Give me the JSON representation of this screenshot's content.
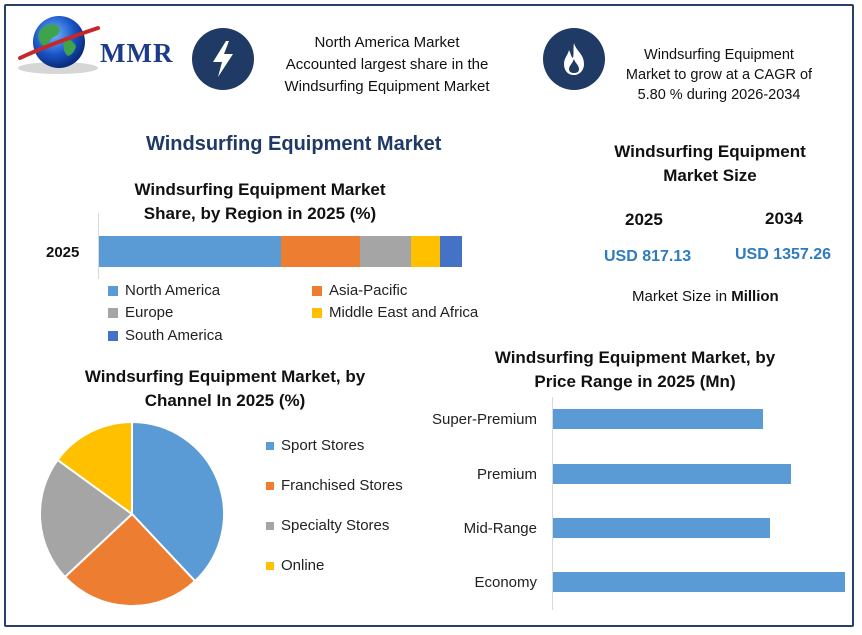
{
  "header": {
    "logo_text": "MMR",
    "badge1_text_lines": [
      "North America Market",
      "Accounted largest share in the",
      "Windsurfing Equipment Market"
    ],
    "badge2_text_lines": [
      "Windsurfing Equipment",
      "Market to grow at a CAGR of",
      "5.80 % during 2026-2034"
    ],
    "badge1_icon": "lightning-bolt-icon",
    "badge2_icon": "flame-icon"
  },
  "main_title": "Windsurfing Equipment Market",
  "market_size": {
    "title_lines": [
      "Windsurfing Equipment",
      "Market Size"
    ],
    "year_a": "2025",
    "year_b": "2034",
    "value_a": "USD 817.13",
    "value_b": "USD 1357.26",
    "note_prefix": "Market Size in ",
    "note_bold": "Million"
  },
  "colors": {
    "blue": "#5b9bd5",
    "orange": "#ed7d31",
    "gray": "#a5a5a5",
    "gold": "#ffc000",
    "darkblue": "#4472c4",
    "navy": "#1f3a64"
  },
  "chart_data": [
    {
      "type": "bar",
      "orientation": "horizontal-stacked",
      "title_lines": [
        "Windsurfing Equipment Market",
        "Share, by Region in 2025 (%)"
      ],
      "categories": [
        "2025"
      ],
      "series": [
        {
          "name": "North America",
          "values": [
            50
          ],
          "color": "#5b9bd5"
        },
        {
          "name": "Asia-Pacific",
          "values": [
            22
          ],
          "color": "#ed7d31"
        },
        {
          "name": "Europe",
          "values": [
            14
          ],
          "color": "#a5a5a5"
        },
        {
          "name": "Middle East and Africa",
          "values": [
            8
          ],
          "color": "#ffc000"
        },
        {
          "name": "South America",
          "values": [
            6
          ],
          "color": "#4472c4"
        }
      ],
      "xlim": [
        0,
        100
      ],
      "legend": "bottom"
    },
    {
      "type": "pie",
      "title_lines": [
        "Windsurfing Equipment Market, by",
        "Channel In 2025 (%)"
      ],
      "labels": [
        "Sport Stores",
        "Franchised Stores",
        "Specialty Stores",
        "Online"
      ],
      "values": [
        38,
        25,
        22,
        15
      ],
      "colors": [
        "#5b9bd5",
        "#ed7d31",
        "#a5a5a5",
        "#ffc000"
      ],
      "legend": "right"
    },
    {
      "type": "bar",
      "orientation": "horizontal",
      "title_lines": [
        "Windsurfing Equipment Market, by",
        "Price Range in 2025 (Mn)"
      ],
      "categories": [
        "Super-Premium",
        "Premium",
        "Mid-Range",
        "Economy"
      ],
      "values": [
        175,
        198,
        181,
        243
      ],
      "xlim": [
        0,
        250
      ],
      "color": "#5b9bd5"
    }
  ]
}
